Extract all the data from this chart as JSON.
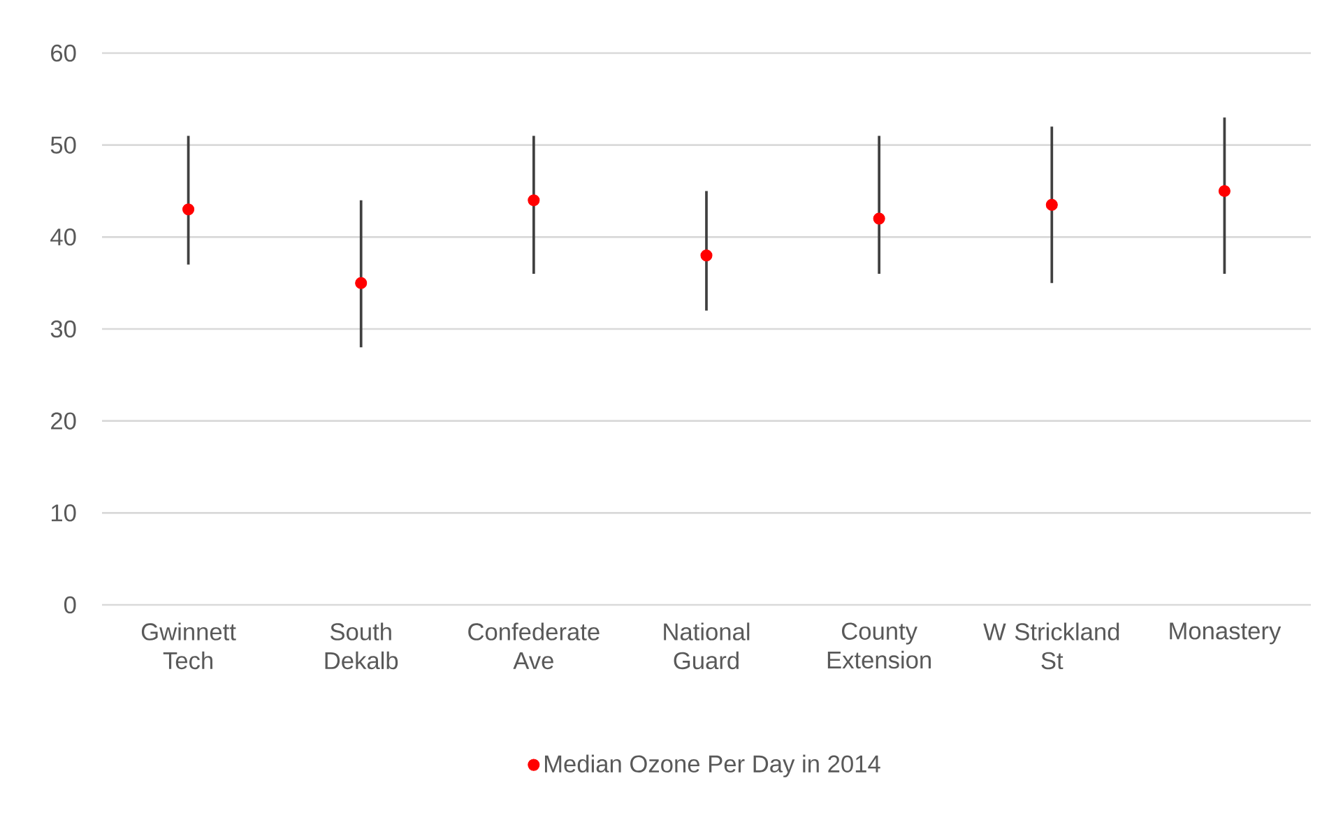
{
  "chart_data": {
    "type": "scatter",
    "categories": [
      "Gwinnett Tech",
      "South Dekalb",
      "Confederate Ave",
      "National Guard",
      "County Extension",
      "W Strickland St",
      "Monastery"
    ],
    "series": [
      {
        "name": "Median Ozone Per Day in 2014",
        "color": "#ff0000",
        "values": [
          43,
          35,
          44,
          38,
          42,
          43.5,
          45
        ],
        "errors": [
          [
            37,
            51
          ],
          [
            28,
            44
          ],
          [
            36,
            51
          ],
          [
            32,
            45
          ],
          [
            36,
            51
          ],
          [
            35,
            52
          ],
          [
            36,
            53
          ]
        ]
      }
    ],
    "ylim": [
      0,
      60
    ],
    "yticks": [
      0,
      10,
      20,
      30,
      40,
      50,
      60
    ],
    "grid": "y",
    "legend": "bottom"
  }
}
